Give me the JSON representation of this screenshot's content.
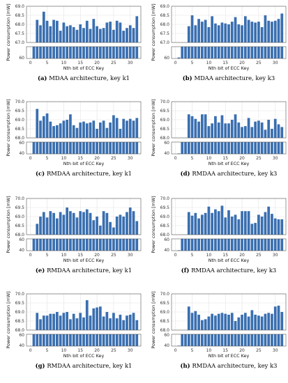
{
  "figure": {
    "ylabel": "Power consumption [mW]",
    "xlabel": "Nth bit of ECC Key",
    "bar_color": "#3a6fb0",
    "grid_color": "#e3e3e3",
    "break_color": "#ffffff"
  },
  "chart_data": [
    {
      "type": "bar",
      "caption_label": "(a)",
      "caption_text": "MDAA architecture, key k1",
      "xlabel": "Nth bit of ECC Key",
      "ylabel": "Power consumption [mW]",
      "x_ticks": [
        0,
        5,
        10,
        15,
        20,
        25,
        30
      ],
      "upper_ylim": [
        67.0,
        69.0
      ],
      "upper_yticks": [
        "69.0",
        "68.5",
        "68.0",
        "67.5",
        "67.0"
      ],
      "lower_ylim": [
        60,
        66
      ],
      "lower_yticks": [
        "60"
      ],
      "x": [
        1,
        2,
        3,
        4,
        5,
        6,
        7,
        8,
        9,
        10,
        11,
        12,
        13,
        14,
        15,
        16,
        17,
        18,
        19,
        20,
        21,
        22,
        23,
        24,
        25,
        26,
        27,
        28,
        29,
        30,
        31,
        32
      ],
      "values": [
        66.2,
        68.25,
        67.95,
        68.7,
        68.2,
        67.9,
        68.25,
        68.2,
        67.65,
        68.1,
        67.9,
        67.95,
        67.85,
        67.7,
        68.0,
        67.8,
        68.2,
        67.75,
        68.3,
        67.9,
        67.75,
        67.8,
        68.1,
        68.15,
        67.7,
        68.2,
        68.1,
        67.65,
        67.8,
        67.95,
        67.8,
        68.45
      ]
    },
    {
      "type": "bar",
      "caption_label": "(b)",
      "caption_text": "MDAA architecture, key k3",
      "xlabel": "Nth bit of ECC Key",
      "ylabel": "Power consumption [mW]",
      "x_ticks": [
        0,
        5,
        10,
        15,
        20,
        25,
        30
      ],
      "upper_ylim": [
        67.0,
        69.0
      ],
      "upper_yticks": [
        "69.0",
        "68.5",
        "68.0",
        "67.5",
        "67.0"
      ],
      "lower_ylim": [
        60,
        66
      ],
      "lower_yticks": [
        "60"
      ],
      "x": [
        1,
        2,
        3,
        4,
        5,
        6,
        7,
        8,
        9,
        10,
        11,
        12,
        13,
        14,
        15,
        16,
        17,
        18,
        19,
        20,
        21,
        22,
        23,
        24,
        25,
        26,
        27,
        28,
        29,
        30,
        31,
        32
      ],
      "values": [
        60.5,
        66.2,
        66.4,
        67.9,
        68.5,
        67.95,
        68.3,
        68.15,
        68.25,
        67.85,
        68.45,
        68.05,
        67.95,
        68.1,
        68.05,
        68.0,
        68.15,
        68.4,
        68.0,
        67.95,
        68.45,
        68.25,
        68.15,
        68.1,
        68.15,
        67.85,
        68.5,
        68.2,
        68.15,
        68.2,
        68.3,
        68.6
      ]
    },
    {
      "type": "bar",
      "caption_label": "(c)",
      "caption_text": "RMDAA architecture, key k1",
      "xlabel": "Nth bit of ECC Key",
      "ylabel": "Power consumption [mW]",
      "x_ticks": [
        0,
        5,
        10,
        15,
        20,
        25,
        30
      ],
      "upper_ylim": [
        68.0,
        70.0
      ],
      "upper_yticks": [
        "70.0",
        "69.5",
        "69.0",
        "68.5",
        "68.0"
      ],
      "lower_ylim": [
        40,
        66
      ],
      "lower_yticks": [
        "60",
        "40"
      ],
      "x": [
        1,
        2,
        3,
        4,
        5,
        6,
        7,
        8,
        9,
        10,
        11,
        12,
        13,
        14,
        15,
        16,
        17,
        18,
        19,
        20,
        21,
        22,
        23,
        24,
        25,
        26,
        27,
        28,
        29,
        30,
        31,
        32
      ],
      "values": [
        66.5,
        69.6,
        68.95,
        69.2,
        69.35,
        68.9,
        68.65,
        68.7,
        68.8,
        68.95,
        69.0,
        69.3,
        68.7,
        68.55,
        68.85,
        68.9,
        68.8,
        68.85,
        68.95,
        68.5,
        68.85,
        68.95,
        68.55,
        68.85,
        69.25,
        69.1,
        68.5,
        69.05,
        68.95,
        69.05,
        68.95,
        69.1
      ]
    },
    {
      "type": "bar",
      "caption_label": "(d)",
      "caption_text": "RMDAA architecture, key k3",
      "xlabel": "Nth bit of ECC Key",
      "ylabel": "Power consumption [mW]",
      "x_ticks": [
        0,
        5,
        10,
        15,
        20,
        25,
        30
      ],
      "upper_ylim": [
        68.0,
        70.0
      ],
      "upper_yticks": [
        "70.0",
        "69.5",
        "69.0",
        "68.5",
        "68.0"
      ],
      "lower_ylim": [
        40,
        66
      ],
      "lower_yticks": [
        "60",
        "40"
      ],
      "x": [
        1,
        2,
        3,
        4,
        5,
        6,
        7,
        8,
        9,
        10,
        11,
        12,
        13,
        14,
        15,
        16,
        17,
        18,
        19,
        20,
        21,
        22,
        23,
        24,
        25,
        26,
        27,
        28,
        29,
        30,
        31,
        32
      ],
      "values": [
        41.0,
        66.3,
        66.5,
        69.3,
        69.2,
        69.05,
        68.9,
        69.3,
        69.3,
        68.65,
        68.8,
        69.2,
        68.85,
        69.25,
        68.8,
        68.8,
        69.0,
        69.3,
        68.85,
        68.6,
        68.65,
        69.1,
        68.6,
        68.9,
        68.95,
        68.85,
        68.45,
        69.0,
        68.5,
        69.05,
        68.75,
        68.6
      ]
    },
    {
      "type": "bar",
      "caption_label": "(e)",
      "caption_text": "RMDAA architecture, key k1",
      "xlabel": "Nth bit of ECC Key",
      "ylabel": "Power consumption [mW]",
      "x_ticks": [
        0,
        5,
        10,
        15,
        20,
        25,
        30
      ],
      "upper_ylim": [
        68.0,
        70.0
      ],
      "upper_yticks": [
        "70.0",
        "69.5",
        "69.0",
        "68.5",
        "68.0"
      ],
      "lower_ylim": [
        40,
        66
      ],
      "lower_yticks": [
        "60",
        "40"
      ],
      "x": [
        1,
        2,
        3,
        4,
        5,
        6,
        7,
        8,
        9,
        10,
        11,
        12,
        13,
        14,
        15,
        16,
        17,
        18,
        19,
        20,
        21,
        22,
        23,
        24,
        25,
        26,
        27,
        28,
        29,
        30,
        31,
        32
      ],
      "values": [
        66.5,
        68.6,
        69.0,
        69.25,
        68.95,
        69.3,
        69.2,
        68.9,
        69.25,
        69.1,
        69.5,
        69.3,
        69.2,
        68.95,
        69.3,
        69.25,
        69.4,
        69.2,
        68.8,
        69.0,
        68.5,
        69.3,
        69.2,
        68.7,
        68.4,
        69.0,
        69.1,
        69.0,
        69.25,
        69.5,
        69.3,
        68.75
      ]
    },
    {
      "type": "bar",
      "caption_label": "(f)",
      "caption_text": "RMDAA architecture, key k3",
      "xlabel": "Nth bit of ECC Key",
      "ylabel": "Power consumption [mW]",
      "x_ticks": [
        0,
        5,
        10,
        15,
        20,
        25,
        30
      ],
      "upper_ylim": [
        68.0,
        70.0
      ],
      "upper_yticks": [
        "70.0",
        "69.5",
        "69.0",
        "68.5",
        "68.0"
      ],
      "lower_ylim": [
        40,
        66
      ],
      "lower_yticks": [
        "60",
        "40"
      ],
      "x": [
        1,
        2,
        3,
        4,
        5,
        6,
        7,
        8,
        9,
        10,
        11,
        12,
        13,
        14,
        15,
        16,
        17,
        18,
        19,
        20,
        21,
        22,
        23,
        24,
        25,
        26,
        27,
        28,
        29,
        30,
        31,
        32
      ],
      "values": [
        41.0,
        66.3,
        66.5,
        69.25,
        69.05,
        69.2,
        68.9,
        69.1,
        69.2,
        69.55,
        69.2,
        69.4,
        69.3,
        69.6,
        68.95,
        69.35,
        69.0,
        69.1,
        68.85,
        69.3,
        69.3,
        69.3,
        68.6,
        68.65,
        69.1,
        69.0,
        69.25,
        69.55,
        69.15,
        68.9,
        68.85,
        68.85
      ]
    },
    {
      "type": "bar",
      "caption_label": "(g)",
      "caption_text": "RMDAA architecture, key k1",
      "xlabel": "Nth bit of ECC Key",
      "ylabel": "Power consumption [mW]",
      "x_ticks": [
        0,
        5,
        10,
        15,
        20,
        25,
        30
      ],
      "upper_ylim": [
        68.0,
        70.0
      ],
      "upper_yticks": [
        "70.0",
        "69.5",
        "69.0",
        "68.5",
        "68.0"
      ],
      "lower_ylim": [
        40,
        66
      ],
      "lower_yticks": [
        "60",
        "40"
      ],
      "x": [
        1,
        2,
        3,
        4,
        5,
        6,
        7,
        8,
        9,
        10,
        11,
        12,
        13,
        14,
        15,
        16,
        17,
        18,
        19,
        20,
        21,
        22,
        23,
        24,
        25,
        26,
        27,
        28,
        29,
        30,
        31,
        32
      ],
      "values": [
        66.5,
        68.95,
        68.6,
        68.8,
        68.8,
        68.9,
        68.9,
        69.0,
        68.8,
        68.95,
        69.0,
        68.6,
        68.9,
        68.65,
        68.95,
        68.7,
        69.65,
        68.8,
        69.2,
        69.25,
        69.3,
        68.75,
        69.0,
        68.65,
        68.95,
        68.65,
        68.85,
        68.55,
        68.8,
        68.85,
        68.95,
        68.55
      ]
    },
    {
      "type": "bar",
      "caption_label": "(h)",
      "caption_text": "RMDAA architecture, key k3",
      "xlabel": "Nth bit of ECC Key",
      "ylabel": "Power consumption [mW]",
      "x_ticks": [
        0,
        5,
        10,
        15,
        20,
        25,
        30
      ],
      "upper_ylim": [
        68.0,
        70.0
      ],
      "upper_yticks": [
        "70.0",
        "69.5",
        "69.0",
        "68.5",
        "68.0"
      ],
      "lower_ylim": [
        40,
        66
      ],
      "lower_yticks": [
        "60",
        "40"
      ],
      "x": [
        1,
        2,
        3,
        4,
        5,
        6,
        7,
        8,
        9,
        10,
        11,
        12,
        13,
        14,
        15,
        16,
        17,
        18,
        19,
        20,
        21,
        22,
        23,
        24,
        25,
        26,
        27,
        28,
        29,
        30,
        31,
        32
      ],
      "values": [
        41.0,
        66.3,
        66.5,
        69.3,
        68.95,
        69.05,
        68.85,
        68.55,
        68.6,
        68.75,
        68.9,
        68.8,
        68.9,
        68.95,
        68.9,
        68.85,
        68.95,
        68.5,
        68.7,
        68.85,
        68.95,
        68.75,
        69.1,
        68.85,
        68.8,
        68.75,
        68.9,
        68.95,
        68.9,
        69.3,
        69.35,
        69.0
      ]
    }
  ]
}
